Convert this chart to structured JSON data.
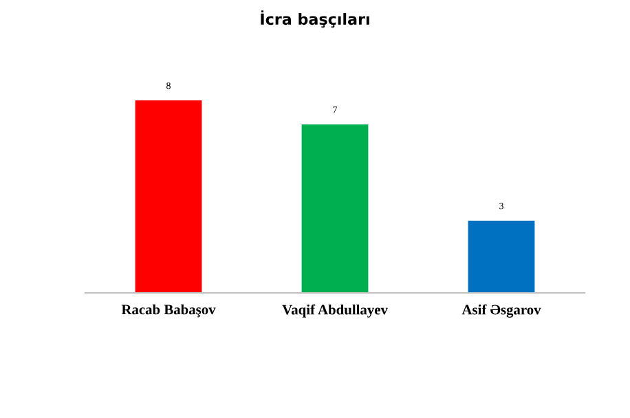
{
  "chart_data": {
    "type": "bar",
    "title": "İcra başçıları",
    "categories": [
      "Racab Babaşov",
      "Vaqif Abdullayev",
      "Asif Əsgarov"
    ],
    "values": [
      8,
      7,
      3
    ],
    "colors": [
      "#ff0000",
      "#00b050",
      "#0070c0"
    ],
    "data_labels": true,
    "grid": false,
    "tick_labels": "x"
  }
}
